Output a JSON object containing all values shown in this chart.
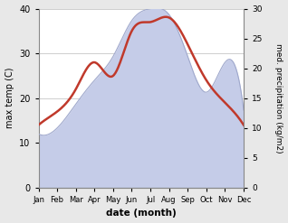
{
  "months": [
    "Jan",
    "Feb",
    "Mar",
    "Apr",
    "May",
    "Jun",
    "Jul",
    "Aug",
    "Sep",
    "Oct",
    "Nov",
    "Dec"
  ],
  "x": [
    0,
    1,
    2,
    3,
    4,
    5,
    6,
    7,
    8,
    9,
    10,
    11
  ],
  "temp": [
    14,
    17,
    22,
    28,
    25,
    35,
    37,
    38,
    32,
    24,
    19,
    14
  ],
  "precip": [
    9,
    10,
    14,
    18,
    22,
    28,
    30,
    29,
    22,
    16,
    21,
    13
  ],
  "temp_ylim": [
    0,
    40
  ],
  "precip_ylim": [
    0,
    30
  ],
  "temp_color": "#c0392b",
  "precip_edge_color": "#9fa8cc",
  "precip_fill_color": "#c5cce8",
  "ylabel_left": "max temp (C)",
  "ylabel_right": "med. precipitation (kg/m2)",
  "xlabel": "date (month)",
  "plot_bg_color": "#ffffff",
  "fig_bg_color": "#e8e8e8",
  "grid_color": "#bbbbbb",
  "temp_linewidth": 1.8,
  "precip_linewidth": 0.8,
  "yticks_left": [
    0,
    10,
    20,
    30,
    40
  ],
  "yticks_right": [
    0,
    5,
    10,
    15,
    20,
    25,
    30
  ]
}
